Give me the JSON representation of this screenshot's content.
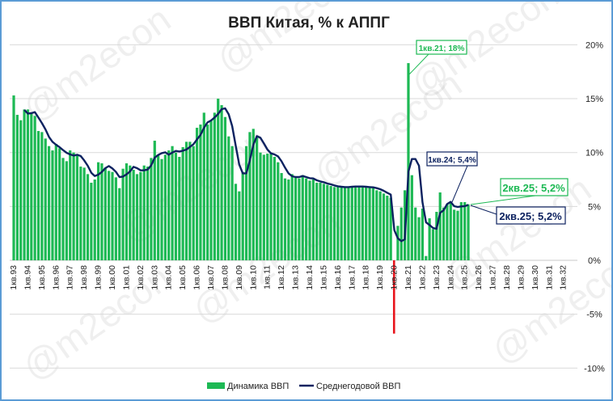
{
  "chart_data": {
    "type": "bar+line",
    "title": "ВВП Китая, % к АППГ",
    "watermark": "@m2econ",
    "y_axis": {
      "position": "right",
      "ylim": [
        -10,
        20
      ],
      "ticks": [
        20,
        15,
        10,
        5,
        0,
        -5,
        -10
      ],
      "tick_labels": [
        "20%",
        "15%",
        "10%",
        "5%",
        "0%",
        "-5%",
        "-10%"
      ],
      "grid": true
    },
    "x_tick_labels": [
      "1кв.93",
      "1кв.94",
      "1кв.95",
      "1кв.96",
      "1кв.97",
      "1кв.98",
      "1кв.99",
      "1кв.00",
      "1кв.01",
      "1кв.02",
      "1кв.03",
      "1кв.04",
      "1кв.05",
      "1кв.06",
      "1кв.07",
      "1кв.08",
      "1кв.09",
      "1кв.10",
      "1кв.11",
      "1кв.12",
      "1кв.13",
      "1кв.14",
      "1кв.15",
      "1кв.16",
      "1кв.17",
      "1кв.18",
      "1кв.19",
      "1кв.20",
      "1кв.21",
      "1кв.22",
      "1кв.23",
      "1кв.24",
      "1кв.25",
      "1кв.26",
      "1кв.27",
      "1кв.28",
      "1кв.29",
      "1кв.30",
      "1кв.31",
      "1кв.32"
    ],
    "x_range": [
      "1кв.93",
      "4кв.32"
    ],
    "colors": {
      "bars": "#1db954",
      "negative_bar": "#e8141c",
      "line": "#0d2260"
    },
    "series": [
      {
        "name": "Динамика ВВП",
        "type": "bar",
        "start": "1кв.93",
        "values": [
          15.3,
          13.5,
          13.0,
          14.0,
          14.0,
          13.6,
          13.4,
          12.0,
          11.9,
          11.3,
          10.6,
          10.2,
          10.8,
          10.4,
          9.5,
          9.2,
          10.2,
          10.0,
          9.8,
          8.7,
          8.6,
          8.0,
          7.2,
          7.5,
          9.1,
          9.0,
          8.6,
          8.3,
          8.2,
          7.7,
          6.7,
          8.5,
          9.0,
          8.8,
          8.4,
          8.0,
          8.2,
          8.8,
          8.7,
          9.5,
          11.1,
          9.8,
          9.4,
          9.8,
          10.2,
          10.6,
          10.0,
          9.6,
          10.5,
          11.0,
          11.0,
          10.6,
          12.3,
          12.6,
          13.7,
          12.6,
          13.0,
          13.7,
          15.0,
          14.4,
          13.3,
          11.5,
          10.6,
          7.1,
          6.4,
          8.2,
          10.6,
          11.9,
          12.2,
          11.4,
          10.0,
          9.8,
          9.9,
          10.0,
          9.6,
          9.1,
          8.1,
          7.6,
          7.5,
          8.0,
          7.8,
          7.6,
          7.9,
          7.6,
          7.4,
          7.5,
          7.2,
          7.2,
          7.1,
          7.0,
          6.9,
          6.8,
          6.8,
          6.8,
          6.8,
          6.8,
          6.9,
          6.9,
          6.8,
          6.8,
          6.8,
          6.8,
          6.7,
          6.5,
          6.4,
          6.2,
          6.0,
          5.8,
          -6.8,
          3.2,
          4.9,
          6.5,
          18.3,
          7.9,
          4.9,
          4.0,
          4.8,
          0.4,
          3.9,
          2.9,
          4.5,
          6.3,
          4.9,
          5.2,
          5.3,
          4.7,
          4.6,
          5.4,
          5.4,
          5.2
        ]
      },
      {
        "name": "Среднегодовой ВВП",
        "type": "line",
        "definition": "4-quarter average of Динамика ВВП"
      }
    ],
    "annotations": [
      {
        "label": "1кв.21; 18%",
        "quarter": "1кв.21",
        "value": 18.3,
        "series": "Динамика ВВП"
      },
      {
        "label": "1кв.24; 5,4%",
        "quarter": "1кв.24",
        "value": 5.4,
        "series": "Среднегодовой ВВП"
      },
      {
        "label": "2кв.25; 5,2%",
        "quarter": "2кв.25",
        "value": 5.2,
        "series": "Динамика ВВП"
      },
      {
        "label": "2кв.25; 5,2%",
        "quarter": "2кв.25",
        "value": 5.2,
        "series": "Среднегодовой ВВП"
      }
    ],
    "legend": {
      "placement": "bottom",
      "items": [
        "Динамика ВВП",
        "Среднегодовой ВВП"
      ]
    }
  }
}
